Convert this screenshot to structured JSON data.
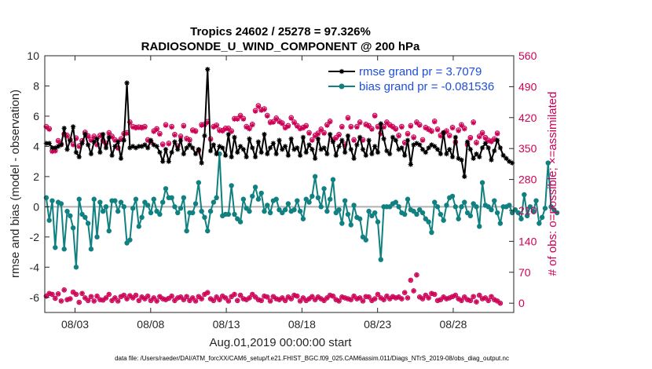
{
  "chart_data": {
    "type": "line",
    "title": "Tropics 24602 / 25278 = 97.326%",
    "subtitle": "RADIOSONDE_U_WIND_COMPONENT @ 200 hPa",
    "xlabel": "Aug.01,2019 00:00:00 start",
    "ylabel": "rmse and bias (model - observation)",
    "ylabel_right": "# of obs: o=possible; ×=assimilated",
    "footnote": "data file: /Users/raeder/DAI/ATM_forcXX/CAM6_setup/f.e21.FHIST_BGC.f09_025.CAM6assim.011/Diags_NTrS_2019-08/obs_diag_output.nc",
    "xlim_days": [
      0,
      31
    ],
    "ylim": [
      -7,
      10
    ],
    "ylim_right": [
      -21,
      560
    ],
    "x_tick_days": [
      2,
      7,
      12,
      17,
      22,
      27
    ],
    "x_tick_labels": [
      "08/03",
      "08/08",
      "08/13",
      "08/18",
      "08/23",
      "08/28"
    ],
    "y_ticks": [
      -6,
      -4,
      -2,
      0,
      2,
      4,
      6,
      8,
      10
    ],
    "y_right_ticks": [
      0,
      70,
      140,
      210,
      280,
      350,
      420,
      490,
      560
    ],
    "colors": {
      "rmse": "#000000",
      "bias": "#108080",
      "obs": "#cc0055",
      "legend_text": "#1f4fd8",
      "zero_line": "#b0b0b0"
    },
    "legend": [
      "rmse grand pr = 3.7079",
      "bias grand pr = -0.081536"
    ],
    "series": [
      {
        "name": "rmse",
        "values": [
          4.2,
          4.2,
          3.9,
          3.9,
          4.0,
          4.1,
          5.2,
          3.8,
          4.4,
          5.3,
          3.6,
          3.3,
          4.2,
          4.8,
          4.1,
          3.5,
          4.3,
          4.5,
          3.6,
          4.8,
          3.9,
          4.6,
          3.4,
          4.0,
          4.3,
          3.2,
          4.4,
          8.2,
          3.9,
          4.0,
          3.9,
          4.0,
          4.0,
          4.1,
          3.9,
          4.4,
          4.1,
          4.0,
          3.6,
          3.0,
          3.8,
          3.0,
          3.6,
          4.3,
          3.8,
          4.4,
          3.5,
          3.9,
          4.1,
          3.9,
          3.5,
          3.8,
          2.9,
          4.7,
          9.1,
          3.7,
          4.1,
          3.5,
          4.0,
          3.9,
          3.4,
          4.8,
          3.3,
          4.6,
          3.6,
          4.0,
          3.8,
          3.3,
          4.5,
          3.9,
          3.3,
          4.3,
          3.6,
          4.8,
          3.5,
          3.9,
          4.2,
          3.5,
          4.4,
          3.8,
          4.0,
          3.4,
          4.5,
          3.8,
          3.9,
          3.4,
          4.6,
          3.6,
          4.1,
          3.8,
          3.2,
          4.5,
          3.8,
          3.9,
          3.5,
          4.8,
          4.3,
          3.4,
          4.0,
          4.4,
          3.6,
          4.7,
          3.8,
          3.2,
          4.1,
          4.6,
          3.8,
          3.4,
          4.4,
          3.5,
          4.0,
          3.6,
          5.5,
          4.5,
          3.7,
          3.5,
          4.6,
          4.4,
          3.8,
          3.9,
          3.4,
          4.4,
          2.8,
          4.1,
          4.2,
          4.1,
          3.8,
          3.6,
          3.9,
          4.1,
          4.0,
          3.8,
          3.5,
          4.9,
          3.5,
          3.8,
          3.3,
          4.6,
          3.2,
          3.1,
          2.0,
          4.3,
          3.8,
          3.2,
          3.5,
          3.3,
          3.9,
          4.2,
          3.9,
          3.1,
          3.7,
          4.4,
          3.9,
          3.4,
          3.2,
          3.0,
          2.9
        ]
      },
      {
        "name": "bias",
        "values": [
          0.6,
          -0.9,
          0.4,
          -2.7,
          0.3,
          0.2,
          -2.8,
          -0.3,
          -0.6,
          -1.4,
          -4.0,
          0.5,
          -0.5,
          -0.7,
          -1.1,
          -2.8,
          0.5,
          -2.0,
          0.3,
          -0.3,
          0.0,
          -1.6,
          0.4,
          0.4,
          -0.3,
          0.3,
          0.0,
          -2.4,
          -2.2,
          -0.1,
          0.5,
          -1.3,
          -0.7,
          0.3,
          0.1,
          -0.4,
          0.5,
          -0.3,
          -0.5,
          0.3,
          1.2,
          0.6,
          0.6,
          0.0,
          -0.4,
          -0.1,
          0.6,
          -1.6,
          -0.4,
          -0.4,
          0.2,
          1.6,
          -0.3,
          -0.7,
          -1.6,
          -0.3,
          0.3,
          0.6,
          3.5,
          -0.6,
          -0.5,
          -0.5,
          1.4,
          -0.5,
          -0.8,
          -1.0,
          0.5,
          -0.1,
          -0.3,
          0.7,
          1.3,
          0.5,
          0.9,
          -0.3,
          0.1,
          -0.4,
          0.4,
          0.5,
          -0.2,
          -0.4,
          -0.2,
          0.2,
          -0.3,
          -0.2,
          0.4,
          -0.3,
          -0.8,
          0.5,
          0.3,
          0.7,
          2.0,
          0.6,
          0.0,
          1.2,
          -0.3,
          0.5,
          1.8,
          -0.4,
          -0.2,
          -1.1,
          0.4,
          -0.5,
          -1.2,
          0.1,
          -0.7,
          -0.8,
          -2.0,
          -2.2,
          -0.3,
          -0.6,
          -0.4,
          -1.0,
          -3.5,
          0.0,
          0.0,
          0.0,
          0.2,
          0.3,
          0.0,
          -0.4,
          -0.5,
          0.5,
          -0.2,
          -0.3,
          -0.5,
          -0.2,
          -0.4,
          -0.8,
          -1.0,
          -1.7,
          0.3,
          0.0,
          -0.5,
          -0.9,
          0.1,
          0.6,
          0.7,
          0.0,
          -0.8,
          0.0,
          0.3,
          -0.4,
          -0.6,
          0.2,
          0.0,
          -1.3,
          1.6,
          0.1,
          0.0,
          -0.2,
          0.4,
          -0.4,
          -1.1,
          0.0,
          0.0,
          0.1,
          -0.4,
          -0.2,
          -0.4,
          -0.8,
          0.8,
          -0.6,
          0.0,
          -0.3,
          0.4,
          -1.1,
          -0.7,
          -0.1,
          2.9,
          0.0,
          -0.2,
          -0.4
        ]
      },
      {
        "name": "obs_possible_high",
        "values": [
          400,
          395,
          345,
          346,
          368,
          360,
          383,
          380,
          370,
          360,
          374,
          356,
          368,
          387,
          379,
          370,
          378,
          360,
          380,
          368,
          362,
          386,
          378,
          370,
          352,
          372,
          384,
          386,
          410,
          400,
          398,
          399,
          398,
          400,
          370,
          366,
          390,
          395,
          384,
          360,
          404,
          362,
          400,
          382,
          356,
          378,
          402,
          373,
          370,
          392,
          390,
          346,
          404,
          405,
          411,
          372,
          400,
          403,
          392,
          391,
          396,
          396,
          390,
          418,
          418,
          425,
          418,
          400,
          396,
          405,
          436,
          447,
          438,
          440,
          425,
          410,
          411,
          419,
          412,
          408,
          398,
          402,
          420,
          410,
          402,
          396,
          398,
          402,
          386,
          370,
          380,
          385,
          394,
          386,
          404,
          412,
          370,
          375,
          382,
          400,
          360,
          420,
          400,
          370,
          400,
          410,
          370,
          405,
          402,
          395,
          425,
          400,
          385,
          400,
          410,
          404,
          400,
          395,
          380,
          400,
          364,
          384,
          402,
          376,
          410,
          404,
          370,
          398,
          394,
          390,
          412,
          394,
          380,
          386,
          390,
          380,
          398,
          365,
          392,
          404,
          396,
          360,
          375,
          410,
          364,
          378,
          386,
          375,
          369,
          367,
          372,
          385
        ]
      },
      {
        "name": "obs_possible_low",
        "values": [
          16,
          22,
          20,
          11,
          21,
          5,
          30,
          8,
          10,
          25,
          20,
          2,
          22,
          12,
          6,
          15,
          5,
          16,
          8,
          7,
          12,
          20,
          6,
          12,
          5,
          15,
          18,
          10,
          17,
          12,
          18,
          6,
          14,
          10,
          16,
          6,
          12,
          5,
          15,
          10,
          8,
          11,
          16,
          6,
          12,
          14,
          8,
          15,
          6,
          12,
          5,
          15,
          10,
          20,
          24,
          10,
          6,
          14,
          8,
          16,
          12,
          5,
          15,
          20,
          6,
          18,
          10,
          8,
          12,
          20,
          14,
          8,
          6,
          16,
          14,
          5,
          15,
          10,
          8,
          12,
          6,
          14,
          10,
          18,
          16,
          5,
          12,
          6,
          10,
          15,
          8,
          14,
          10,
          6,
          12,
          18,
          16,
          8,
          5,
          14,
          12,
          10,
          8,
          16,
          10,
          12,
          5,
          15,
          14,
          6,
          10,
          20,
          12,
          8,
          16,
          10,
          15,
          12,
          14,
          10,
          24,
          12,
          52,
          28,
          64,
          14,
          10,
          18,
          12,
          22,
          20,
          6,
          8,
          14,
          10,
          12,
          15,
          18,
          10,
          6,
          14,
          8,
          6,
          15,
          3,
          18,
          10,
          12,
          6,
          15,
          8,
          5,
          0
        ]
      }
    ]
  }
}
